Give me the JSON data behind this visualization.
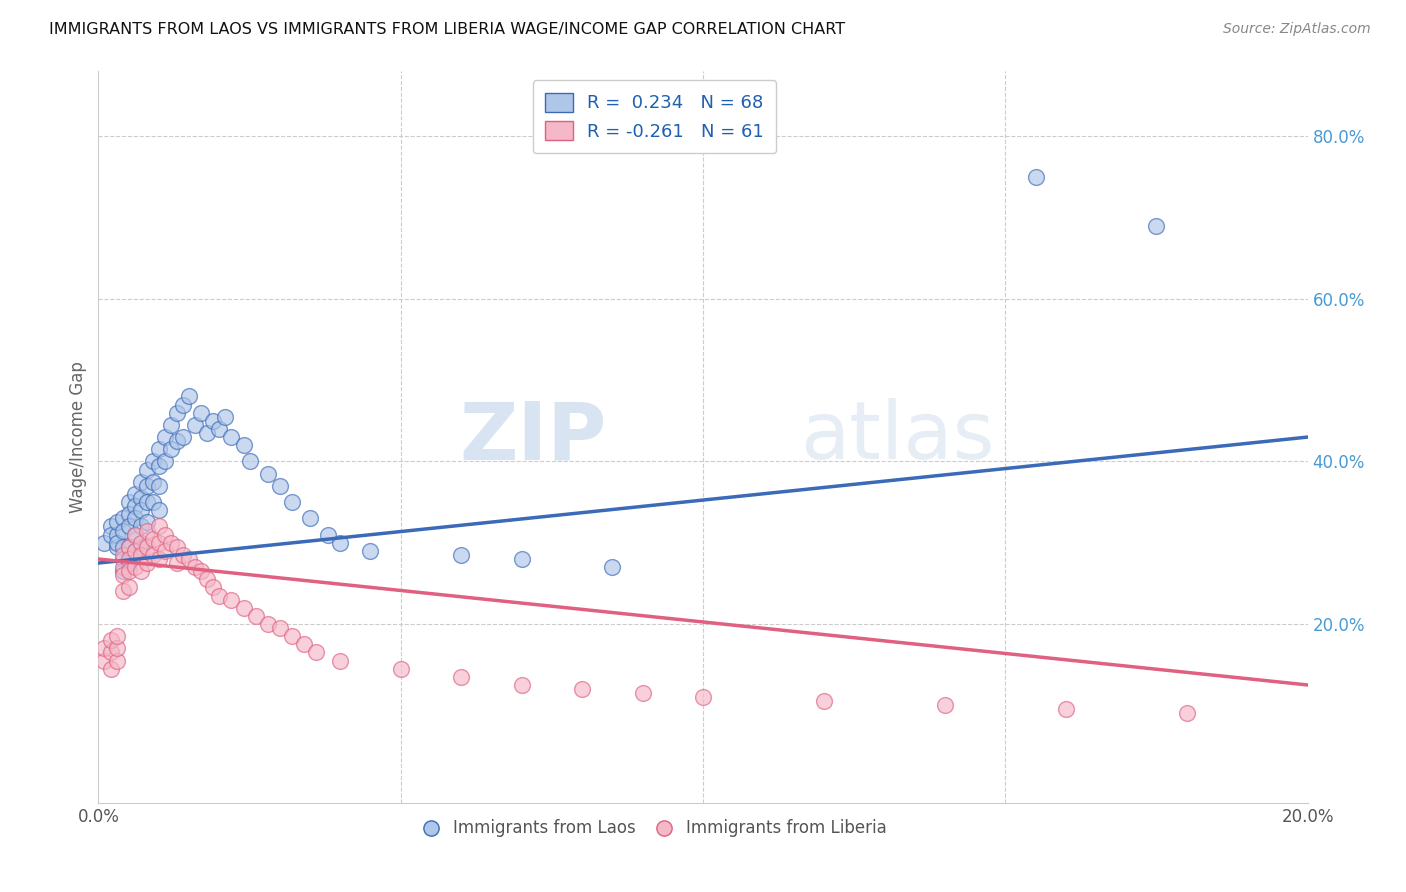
{
  "title": "IMMIGRANTS FROM LAOS VS IMMIGRANTS FROM LIBERIA WAGE/INCOME GAP CORRELATION CHART",
  "source": "Source: ZipAtlas.com",
  "ylabel": "Wage/Income Gap",
  "xmin": 0.0,
  "xmax": 0.2,
  "ymin": -0.02,
  "ymax": 0.88,
  "laos_color": "#aec6e8",
  "laos_line_color": "#3a6ab8",
  "liberia_color": "#f4b8c8",
  "liberia_line_color": "#e06080",
  "laos_R": 0.234,
  "laos_N": 68,
  "liberia_R": -0.261,
  "liberia_N": 61,
  "watermark_zip": "ZIP",
  "watermark_atlas": "atlas",
  "background_color": "#ffffff",
  "grid_color": "#cccccc",
  "laos_scatter_x": [
    0.001,
    0.002,
    0.002,
    0.003,
    0.003,
    0.003,
    0.003,
    0.004,
    0.004,
    0.004,
    0.004,
    0.004,
    0.005,
    0.005,
    0.005,
    0.005,
    0.005,
    0.006,
    0.006,
    0.006,
    0.006,
    0.006,
    0.007,
    0.007,
    0.007,
    0.007,
    0.007,
    0.008,
    0.008,
    0.008,
    0.008,
    0.009,
    0.009,
    0.009,
    0.01,
    0.01,
    0.01,
    0.01,
    0.011,
    0.011,
    0.012,
    0.012,
    0.013,
    0.013,
    0.014,
    0.014,
    0.015,
    0.016,
    0.017,
    0.018,
    0.019,
    0.02,
    0.021,
    0.022,
    0.024,
    0.025,
    0.028,
    0.03,
    0.032,
    0.035,
    0.038,
    0.04,
    0.045,
    0.06,
    0.07,
    0.085,
    0.155,
    0.175
  ],
  "laos_scatter_y": [
    0.3,
    0.32,
    0.31,
    0.295,
    0.31,
    0.325,
    0.3,
    0.33,
    0.315,
    0.295,
    0.28,
    0.265,
    0.35,
    0.335,
    0.32,
    0.295,
    0.275,
    0.36,
    0.345,
    0.33,
    0.31,
    0.29,
    0.375,
    0.355,
    0.34,
    0.32,
    0.295,
    0.39,
    0.37,
    0.35,
    0.325,
    0.4,
    0.375,
    0.35,
    0.415,
    0.395,
    0.37,
    0.34,
    0.43,
    0.4,
    0.445,
    0.415,
    0.46,
    0.425,
    0.47,
    0.43,
    0.48,
    0.445,
    0.46,
    0.435,
    0.45,
    0.44,
    0.455,
    0.43,
    0.42,
    0.4,
    0.385,
    0.37,
    0.35,
    0.33,
    0.31,
    0.3,
    0.29,
    0.285,
    0.28,
    0.27,
    0.75,
    0.69
  ],
  "liberia_scatter_x": [
    0.001,
    0.001,
    0.002,
    0.002,
    0.002,
    0.003,
    0.003,
    0.003,
    0.004,
    0.004,
    0.004,
    0.004,
    0.005,
    0.005,
    0.005,
    0.005,
    0.006,
    0.006,
    0.006,
    0.007,
    0.007,
    0.007,
    0.008,
    0.008,
    0.008,
    0.009,
    0.009,
    0.01,
    0.01,
    0.01,
    0.011,
    0.011,
    0.012,
    0.013,
    0.013,
    0.014,
    0.015,
    0.016,
    0.017,
    0.018,
    0.019,
    0.02,
    0.022,
    0.024,
    0.026,
    0.028,
    0.03,
    0.032,
    0.034,
    0.036,
    0.04,
    0.05,
    0.06,
    0.07,
    0.08,
    0.09,
    0.1,
    0.12,
    0.14,
    0.16,
    0.18
  ],
  "liberia_scatter_y": [
    0.155,
    0.17,
    0.145,
    0.165,
    0.18,
    0.155,
    0.17,
    0.185,
    0.27,
    0.285,
    0.26,
    0.24,
    0.295,
    0.28,
    0.265,
    0.245,
    0.31,
    0.29,
    0.27,
    0.3,
    0.285,
    0.265,
    0.315,
    0.295,
    0.275,
    0.305,
    0.285,
    0.32,
    0.3,
    0.28,
    0.31,
    0.29,
    0.3,
    0.295,
    0.275,
    0.285,
    0.28,
    0.27,
    0.265,
    0.255,
    0.245,
    0.235,
    0.23,
    0.22,
    0.21,
    0.2,
    0.195,
    0.185,
    0.175,
    0.165,
    0.155,
    0.145,
    0.135,
    0.125,
    0.12,
    0.115,
    0.11,
    0.105,
    0.1,
    0.095,
    0.09
  ],
  "laos_line_x0": 0.0,
  "laos_line_y0": 0.275,
  "laos_line_x1": 0.2,
  "laos_line_y1": 0.43,
  "liberia_line_x0": 0.0,
  "liberia_line_y0": 0.28,
  "liberia_line_x1": 0.2,
  "liberia_line_y1": 0.125
}
